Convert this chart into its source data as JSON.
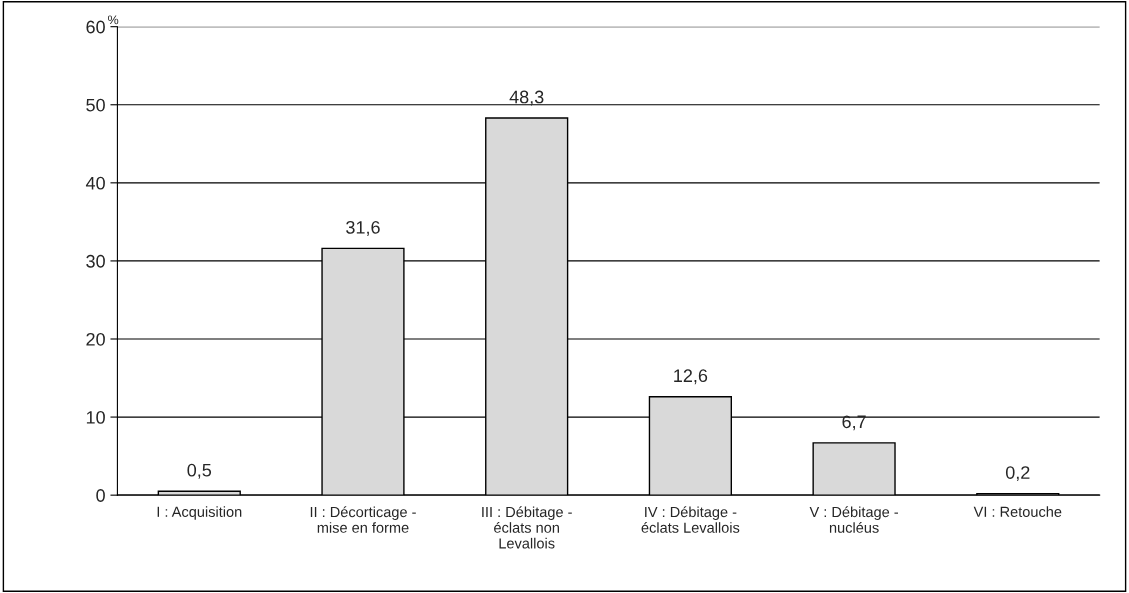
{
  "chart_data": {
    "type": "bar",
    "ylabel": "%",
    "categories": [
      "I : Acquisition",
      "II : Décorticage -\nmise en forme",
      "III : Débitage -\néclats non\nLevallois",
      "IV : Débitage -\néclats Levallois",
      "V : Débitage -\nnucléus",
      "VI : Retouche"
    ],
    "values": [
      0.5,
      31.6,
      48.3,
      12.6,
      6.7,
      0.2
    ],
    "value_labels": [
      "0,5",
      "31,6",
      "48,3",
      "12,6",
      "6,7",
      "0,2"
    ],
    "color": "#d9d9d9",
    "ylim": [
      0,
      60
    ],
    "yticks": [
      0,
      10,
      20,
      30,
      40,
      50,
      60
    ],
    "grid": "y"
  }
}
